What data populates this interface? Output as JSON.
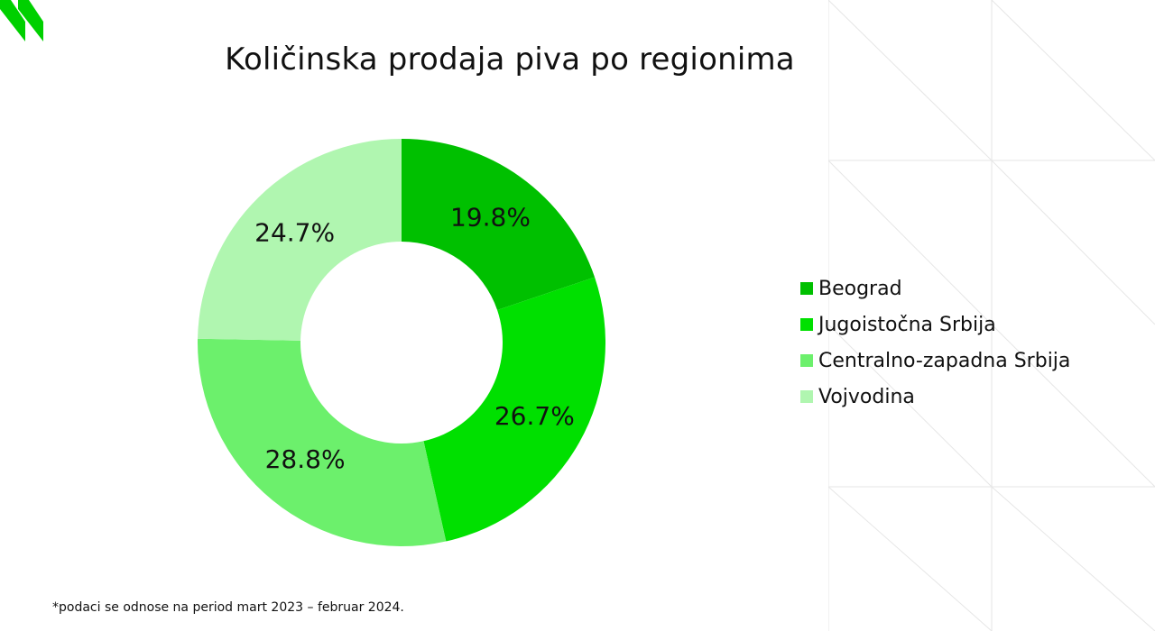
{
  "page": {
    "footnote": "*podaci  se odnose na period mart 2023 – februar 2024.",
    "brand_icon": "green-chevron-logo"
  },
  "chart_data": {
    "type": "pie",
    "variant": "donut",
    "title": "Količinska prodaja piva po regionima",
    "legend_position": "right",
    "categories": [
      "Beograd",
      "Jugoistočna Srbija",
      "Centralno-zapadna Srbija",
      "Vojvodina"
    ],
    "values": [
      19.8,
      26.7,
      28.8,
      24.7
    ],
    "labels": [
      "19.8%",
      "26.7%",
      "28.8%",
      "24.7%"
    ],
    "colors": [
      "#00c000",
      "#00e000",
      "#6cf06c",
      "#b0f6b0"
    ]
  }
}
